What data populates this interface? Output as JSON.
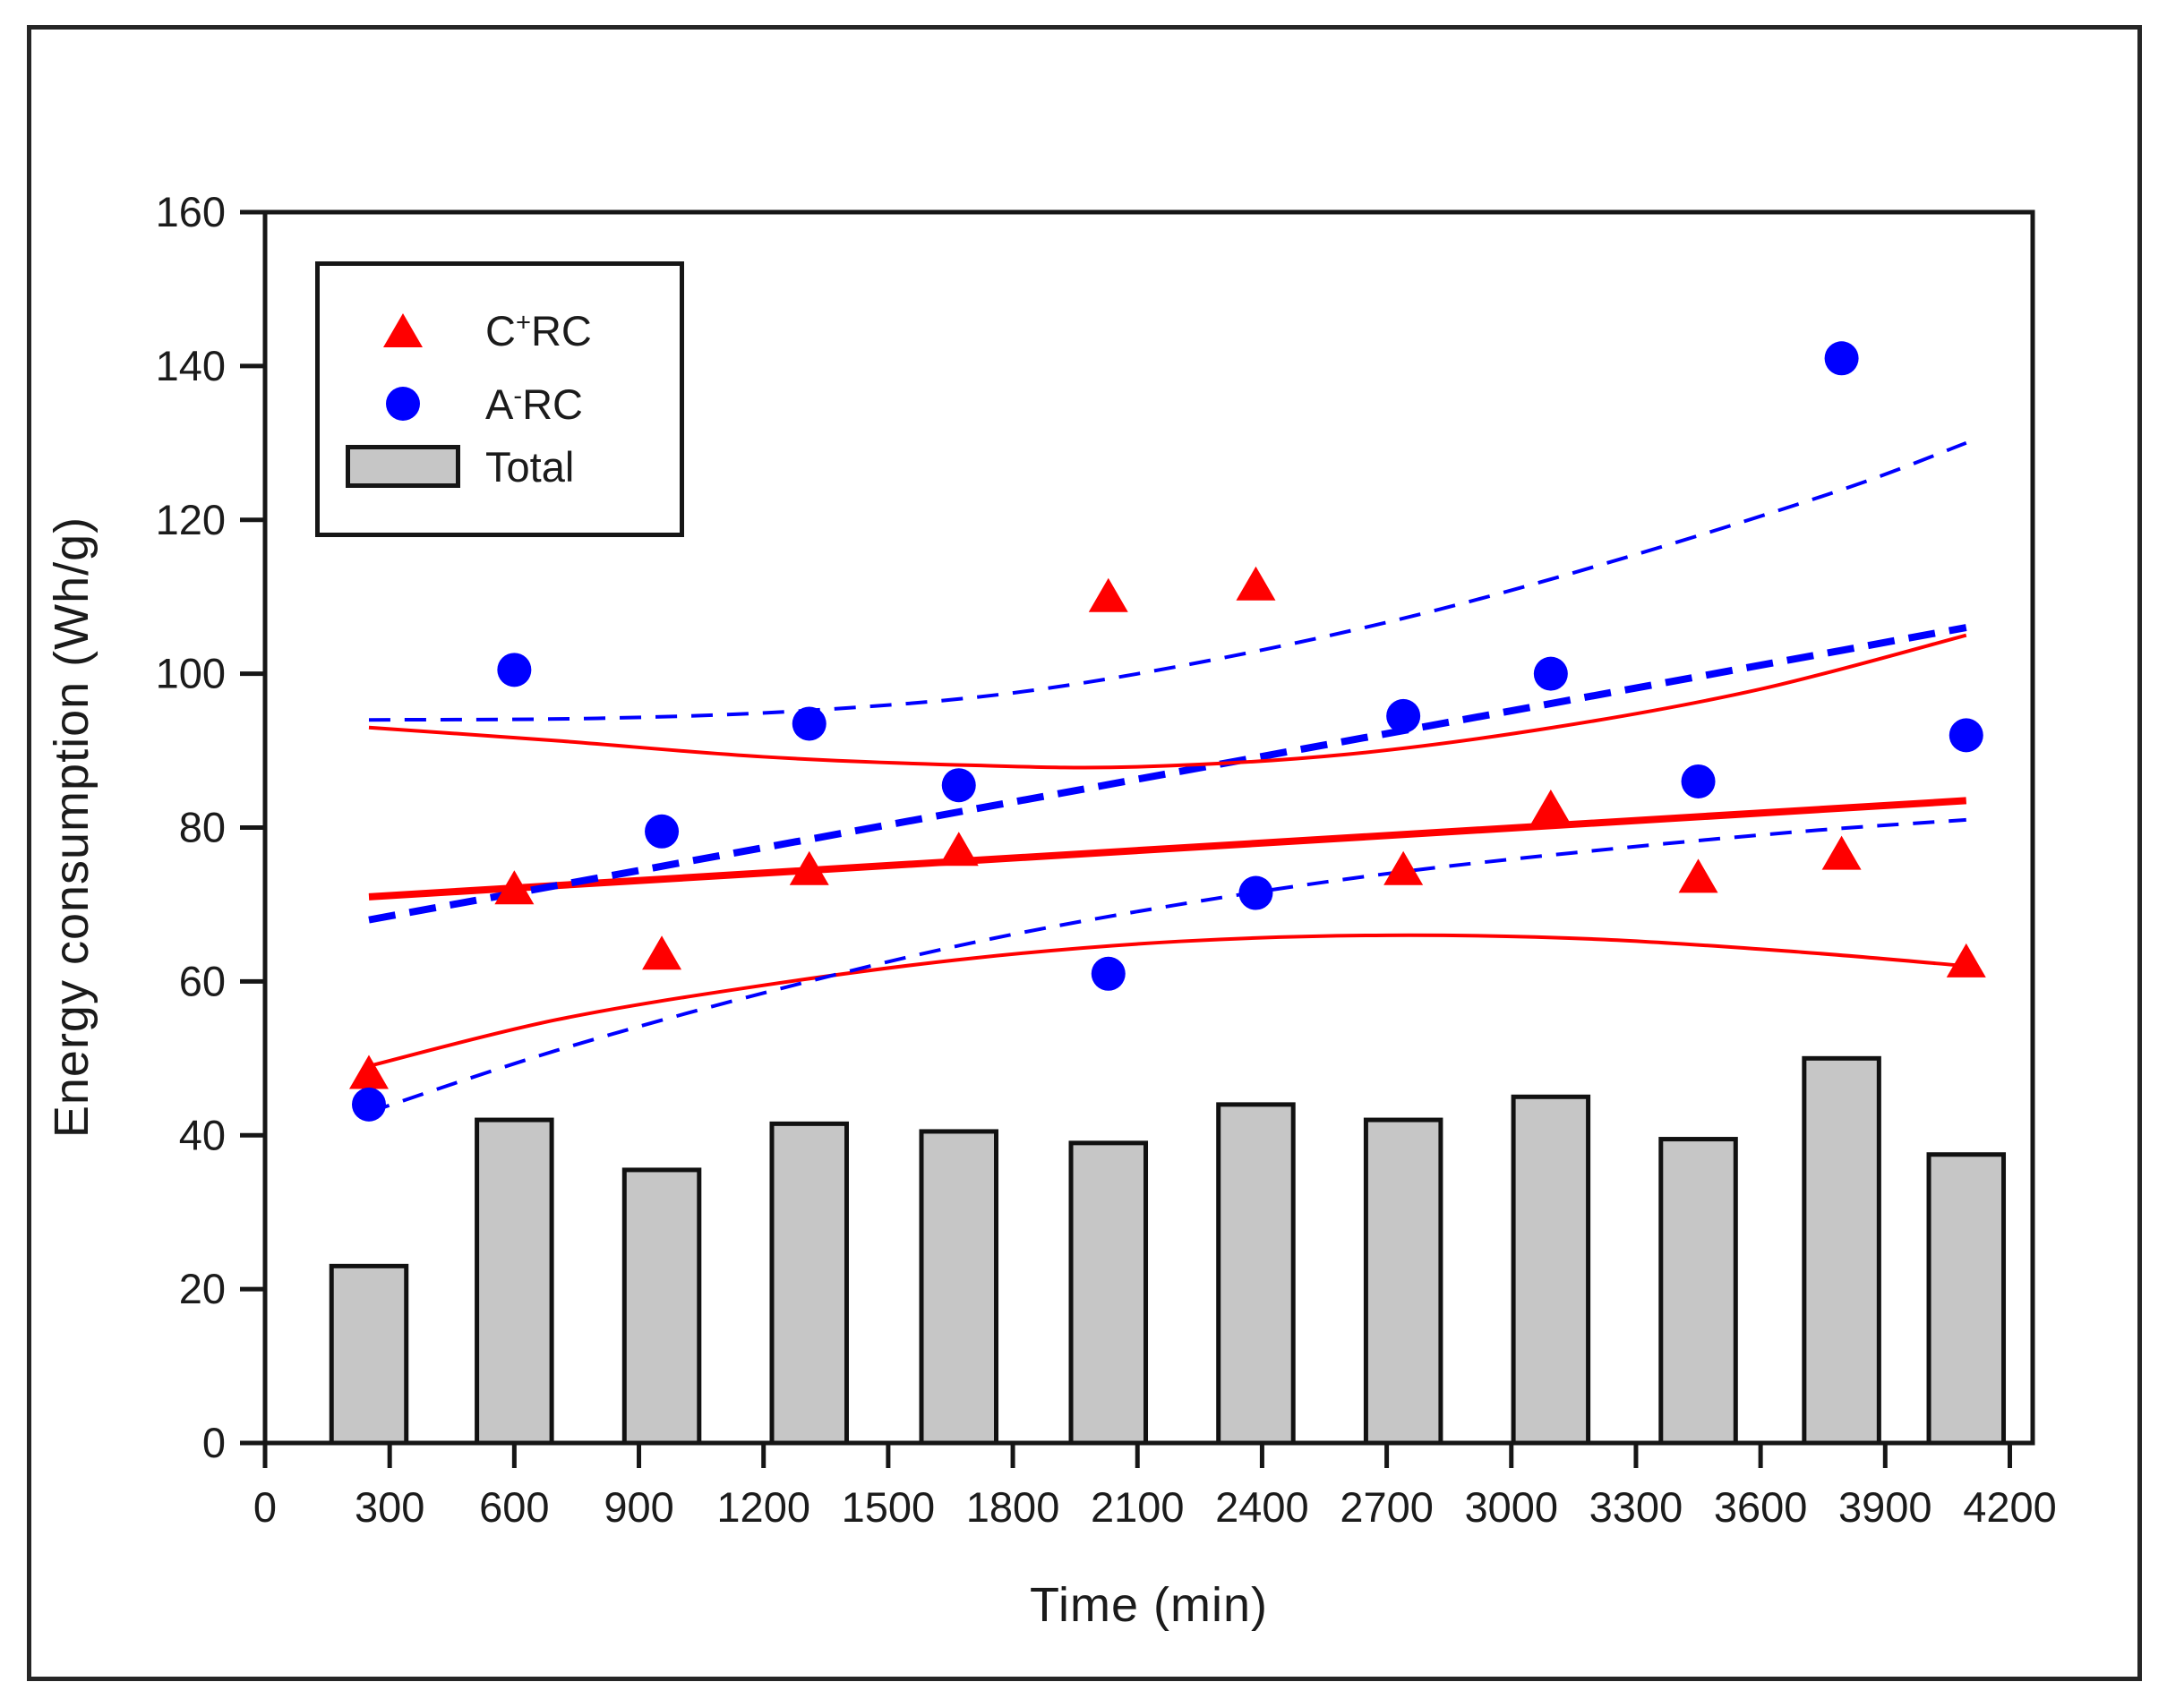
{
  "figure": {
    "x_axis_title": "Time (min)",
    "y_axis_title": "Energy consumption (Wh/g)"
  },
  "legend": {
    "position": "upper-left-inside",
    "items": [
      {
        "marker": "red-triangle-icon",
        "prefix": "C",
        "sup": "+",
        "suffix": "RC"
      },
      {
        "marker": "blue-circle-icon",
        "prefix": "A",
        "sup": "-",
        "suffix": "RC"
      },
      {
        "marker": "gray-bar-icon",
        "prefix": "Total",
        "sup": "",
        "suffix": ""
      }
    ]
  },
  "colors": {
    "red_series": "#ff0000",
    "blue_series": "#0000ff",
    "bar_fill": "#c6c6c6",
    "bar_border": "#111111",
    "axis": "#161616",
    "text": "#1b1b1b"
  },
  "chart_data": {
    "type": "composite",
    "subtypes": [
      "scatter",
      "bar",
      "line"
    ],
    "title": "",
    "xlabel": "Time (min)",
    "ylabel": "Energy consumption (Wh/g)",
    "xlim": [
      0,
      4255
    ],
    "ylim": [
      0,
      160
    ],
    "x_ticks": [
      0,
      300,
      600,
      900,
      1200,
      1500,
      1800,
      2100,
      2400,
      2700,
      3000,
      3300,
      3600,
      3900,
      4200
    ],
    "y_ticks": [
      0,
      20,
      40,
      60,
      80,
      100,
      120,
      140,
      160
    ],
    "grid": false,
    "x_points": [
      250,
      600,
      955,
      1310,
      1670,
      2030,
      2385,
      2740,
      3095,
      3450,
      3795,
      4095
    ],
    "series": [
      {
        "name": "C+RC",
        "kind": "scatter",
        "marker": "triangle",
        "color": "#ff0000",
        "x": [
          250,
          600,
          955,
          1310,
          1670,
          2030,
          2385,
          2740,
          3095,
          3450,
          3795,
          4095
        ],
        "y": [
          48,
          72,
          63.5,
          74.5,
          77,
          110,
          111.5,
          74.5,
          82.5,
          73.5,
          76.5,
          62.5
        ]
      },
      {
        "name": "A-RC",
        "kind": "scatter",
        "marker": "circle",
        "color": "#0000ff",
        "x": [
          250,
          600,
          955,
          1310,
          1670,
          2030,
          2385,
          2740,
          3095,
          3450,
          3795,
          4095
        ],
        "y": [
          44,
          100.5,
          79.5,
          93.5,
          85.5,
          61,
          71.5,
          94.5,
          100,
          86,
          141,
          92
        ]
      },
      {
        "name": "Total",
        "kind": "bar",
        "color": "#c6c6c6",
        "border": "#111111",
        "bar_width_x_units": 180,
        "x": [
          250,
          600,
          955,
          1310,
          1670,
          2030,
          2385,
          2740,
          3095,
          3450,
          3795,
          4095
        ],
        "y": [
          23,
          42,
          35.5,
          41.5,
          40.5,
          39,
          44,
          42,
          45,
          39.5,
          50,
          37.5
        ]
      },
      {
        "name": "C+RC regression",
        "kind": "line",
        "style": "solid",
        "width": 8,
        "color": "#ff0000",
        "points": [
          [
            250,
            71
          ],
          [
            4095,
            83.5
          ]
        ]
      },
      {
        "name": "A-RC regression",
        "kind": "line",
        "style": "dashed",
        "width": 8,
        "color": "#0000ff",
        "points": [
          [
            250,
            68
          ],
          [
            4095,
            106
          ]
        ]
      },
      {
        "name": "C+RC confidence band upper",
        "kind": "line",
        "style": "solid",
        "width": 4,
        "color": "#ff0000",
        "points": [
          [
            250,
            93
          ],
          [
            700,
            91.3
          ],
          [
            1200,
            89.2
          ],
          [
            1700,
            88.1
          ],
          [
            2100,
            87.9
          ],
          [
            2600,
            89.5
          ],
          [
            3100,
            93
          ],
          [
            3600,
            98
          ],
          [
            4095,
            105
          ]
        ]
      },
      {
        "name": "C+RC confidence band lower",
        "kind": "line",
        "style": "solid",
        "width": 4,
        "color": "#ff0000",
        "points": [
          [
            250,
            49
          ],
          [
            700,
            55
          ],
          [
            1200,
            59.5
          ],
          [
            1700,
            63
          ],
          [
            2200,
            65.2
          ],
          [
            2700,
            66
          ],
          [
            3200,
            65.5
          ],
          [
            3700,
            63.8
          ],
          [
            4095,
            62
          ]
        ]
      },
      {
        "name": "A-RC confidence band upper",
        "kind": "line",
        "style": "dashed",
        "width": 4,
        "color": "#0000ff",
        "points": [
          [
            250,
            94
          ],
          [
            800,
            94.2
          ],
          [
            1300,
            95.2
          ],
          [
            1800,
            97.5
          ],
          [
            2300,
            102
          ],
          [
            2800,
            108
          ],
          [
            3300,
            115.5
          ],
          [
            3800,
            124
          ],
          [
            4095,
            130
          ]
        ]
      },
      {
        "name": "A-RC confidence band lower",
        "kind": "line",
        "style": "dashed",
        "width": 4,
        "color": "#0000ff",
        "points": [
          [
            250,
            43
          ],
          [
            700,
            51
          ],
          [
            1200,
            58.5
          ],
          [
            1700,
            65
          ],
          [
            2200,
            70
          ],
          [
            2700,
            74
          ],
          [
            3200,
            77
          ],
          [
            3700,
            79.5
          ],
          [
            4095,
            81
          ]
        ]
      }
    ]
  }
}
